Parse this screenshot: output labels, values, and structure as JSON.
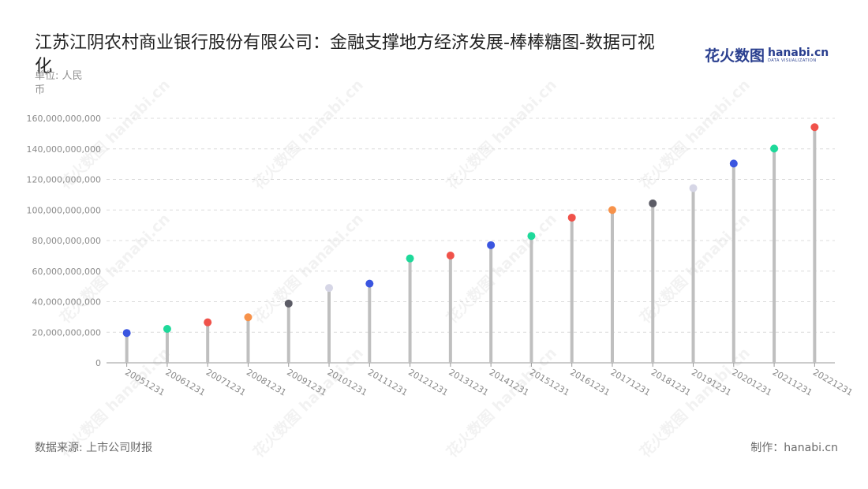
{
  "title": "江苏江阴农村商业银行股份有限公司：金融支撑地方经济发展-棒棒糖图-数据可视化",
  "logo": {
    "name_cn": "花火数图",
    "name_en": "hanabi.cn",
    "tagline": "DATA VISUALIZATION"
  },
  "footer": {
    "source": "数据来源: 上市公司财报",
    "credit": "制作：hanabi.cn"
  },
  "watermark": "花火数图 hanabi.cn",
  "chart_data": {
    "type": "lollipop",
    "title": "江苏江阴农村商业银行股份有限公司：金融支撑地方经济发展-棒棒糖图-数据可视化",
    "ylabel": "单位: 人民币",
    "ylim": [
      0,
      160000000000
    ],
    "yticks": [
      0,
      20000000000,
      40000000000,
      60000000000,
      80000000000,
      100000000000,
      120000000000,
      140000000000,
      160000000000
    ],
    "ytick_labels": [
      "0",
      "20,000,000,000",
      "40,000,000,000",
      "60,000,000,000",
      "80,000,000,000",
      "100,000,000,000",
      "120,000,000,000",
      "140,000,000,000",
      "160,000,000,000"
    ],
    "grid": true,
    "categories": [
      "20051231",
      "20061231",
      "20071231",
      "20081231",
      "20091231",
      "20101231",
      "20111231",
      "20121231",
      "20131231",
      "20141231",
      "20151231",
      "20161231",
      "20171231",
      "20181231",
      "20191231",
      "20201231",
      "20211231",
      "20221231"
    ],
    "values": [
      19500000000,
      22200000000,
      26500000000,
      29800000000,
      38800000000,
      49000000000,
      51800000000,
      68300000000,
      70200000000,
      77000000000,
      83000000000,
      95000000000,
      100000000000,
      104300000000,
      114300000000,
      130400000000,
      140200000000,
      154200000000
    ],
    "colors": [
      "#3a55e0",
      "#1ed99a",
      "#f0524a",
      "#f7924a",
      "#5c5c66",
      "#d6d6e6",
      "#3a55e0",
      "#1ed99a",
      "#f0524a",
      "#3a55e0",
      "#1ed99a",
      "#f0524a",
      "#f7924a",
      "#5c5c66",
      "#d6d6e6",
      "#3a55e0",
      "#1ed99a",
      "#f0524a"
    ],
    "stem_color": "#bfbfbf"
  }
}
